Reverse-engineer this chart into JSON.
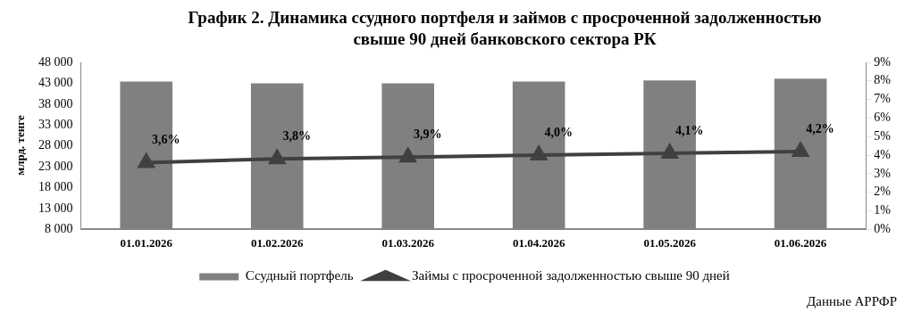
{
  "chart_data": {
    "type": "bar",
    "title": "График 2. Динамика ссудного портфеля и займов с просроченной задолженностью свыше 90 дней банковского сектора РК",
    "ylabel": "млрд. тенге",
    "annotations": [
      "Данные АРРФР"
    ],
    "categories": [
      "01.01.2026",
      "01.02.2026",
      "01.03.2026",
      "01.04.2026",
      "01.05.2026",
      "01.06.2026"
    ],
    "series": [
      {
        "name": "Ссудный портфель",
        "color": "#808080",
        "values": [
          43400,
          43000,
          43000,
          43400,
          43700,
          44100
        ]
      },
      {
        "name": "Займы с просроченной задолженностью свыше 90 дней",
        "type": "line",
        "axis": "y2",
        "color": "#404040",
        "marker": "triangle",
        "values": [
          3.6,
          3.8,
          3.9,
          4.0,
          4.1,
          4.2
        ],
        "value_labels": [
          "3,6%",
          "3,8%",
          "3,9%",
          "4,0%",
          "4,1%",
          "4,2%"
        ]
      }
    ],
    "ylim": [
      8000,
      48000
    ],
    "yticks": [
      {
        "value": 8000,
        "label": "8 000"
      },
      {
        "value": 13000,
        "label": "13 000"
      },
      {
        "value": 18000,
        "label": "18 000"
      },
      {
        "value": 23000,
        "label": "23 000"
      },
      {
        "value": 28000,
        "label": "28 000"
      },
      {
        "value": 33000,
        "label": "33 000"
      },
      {
        "value": 38000,
        "label": "38 000"
      },
      {
        "value": 43000,
        "label": "43 000"
      },
      {
        "value": 48000,
        "label": "48 000"
      }
    ],
    "y2lim": [
      0,
      9
    ],
    "y2ticks": [
      {
        "value": 0,
        "label": "0%"
      },
      {
        "value": 1,
        "label": "1%"
      },
      {
        "value": 2,
        "label": "2%"
      },
      {
        "value": 3,
        "label": "3%"
      },
      {
        "value": 4,
        "label": "4%"
      },
      {
        "value": 5,
        "label": "5%"
      },
      {
        "value": 6,
        "label": "6%"
      },
      {
        "value": 7,
        "label": "7%"
      },
      {
        "value": 8,
        "label": "8%"
      },
      {
        "value": 9,
        "label": "9%"
      }
    ],
    "grid": false,
    "legend": "bottom"
  }
}
